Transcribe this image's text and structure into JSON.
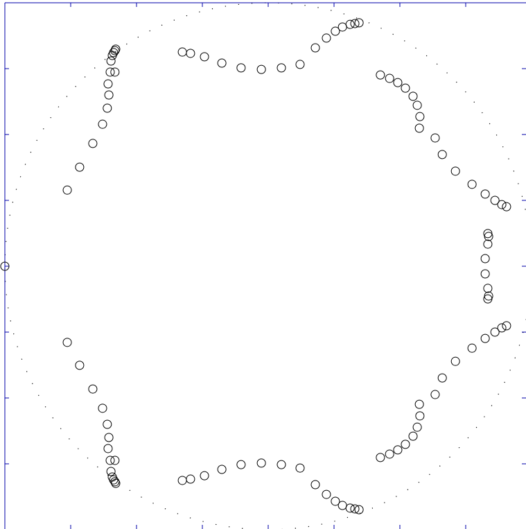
{
  "chart_data": {
    "type": "scatter",
    "color": "#000000",
    "axis_color": "#0000aa",
    "unit_circle": true,
    "xlim": [
      -1,
      1
    ],
    "ylim": [
      -1,
      1
    ],
    "xticks": [
      -0.75,
      -0.5,
      -0.25,
      0,
      0.25,
      0.5,
      0.75
    ],
    "yticks": [
      -0.75,
      -0.5,
      -0.25,
      0,
      0.25,
      0.5,
      0.75
    ],
    "x": [
      -0.763,
      -0.716,
      -0.666,
      -0.629,
      -0.611,
      -0.605,
      -0.608,
      -0.6,
      -0.582,
      -0.597,
      -0.592,
      -0.587,
      -0.582,
      -0.579,
      -0.326,
      -0.295,
      -0.242,
      -0.176,
      -0.103,
      -0.026,
      0.05,
      0.121,
      0.179,
      0.221,
      0.255,
      0.282,
      0.311,
      0.329,
      0.345,
      0.426,
      0.461,
      0.492,
      0.521,
      0.55,
      0.566,
      0.576,
      0.574,
      0.634,
      0.661,
      0.711,
      0.774,
      0.824,
      0.861,
      0.887,
      0.905,
      0.834,
      0.837,
      0.834,
      0.824,
      -0.763,
      -0.716,
      -0.666,
      -0.629,
      -0.611,
      -0.605,
      -0.608,
      -0.6,
      -0.582,
      -0.597,
      -0.592,
      -0.587,
      -0.582,
      -0.579,
      -0.326,
      -0.295,
      -0.242,
      -0.176,
      -0.103,
      -0.026,
      0.05,
      0.121,
      0.179,
      0.221,
      0.255,
      0.282,
      0.311,
      0.329,
      0.345,
      0.426,
      0.461,
      0.492,
      0.521,
      0.55,
      0.566,
      0.576,
      0.574,
      0.634,
      0.661,
      0.711,
      0.774,
      0.824,
      0.861,
      0.887,
      0.905,
      0.834,
      0.837,
      0.834,
      0.824,
      -1.0
    ],
    "values": [
      0.289,
      0.376,
      0.466,
      0.539,
      0.6,
      0.65,
      0.692,
      0.737,
      0.737,
      0.779,
      0.8,
      0.811,
      0.818,
      0.824,
      0.813,
      0.808,
      0.795,
      0.771,
      0.753,
      0.747,
      0.753,
      0.766,
      0.829,
      0.866,
      0.892,
      0.908,
      0.918,
      0.921,
      0.924,
      0.726,
      0.713,
      0.697,
      0.676,
      0.645,
      0.611,
      0.568,
      0.524,
      0.487,
      0.424,
      0.361,
      0.311,
      0.274,
      0.25,
      0.234,
      0.226,
      0.124,
      0.113,
      0.084,
      0.029,
      -0.289,
      -0.376,
      -0.466,
      -0.539,
      -0.6,
      -0.65,
      -0.692,
      -0.737,
      -0.737,
      -0.779,
      -0.8,
      -0.811,
      -0.818,
      -0.824,
      -0.813,
      -0.808,
      -0.795,
      -0.771,
      -0.753,
      -0.747,
      -0.753,
      -0.766,
      -0.829,
      -0.866,
      -0.892,
      -0.908,
      -0.918,
      -0.921,
      -0.924,
      -0.726,
      -0.713,
      -0.697,
      -0.676,
      -0.645,
      -0.611,
      -0.568,
      -0.524,
      -0.487,
      -0.424,
      -0.361,
      -0.311,
      -0.274,
      -0.25,
      -0.234,
      -0.226,
      -0.124,
      -0.113,
      -0.084,
      -0.029,
      0
    ]
  }
}
